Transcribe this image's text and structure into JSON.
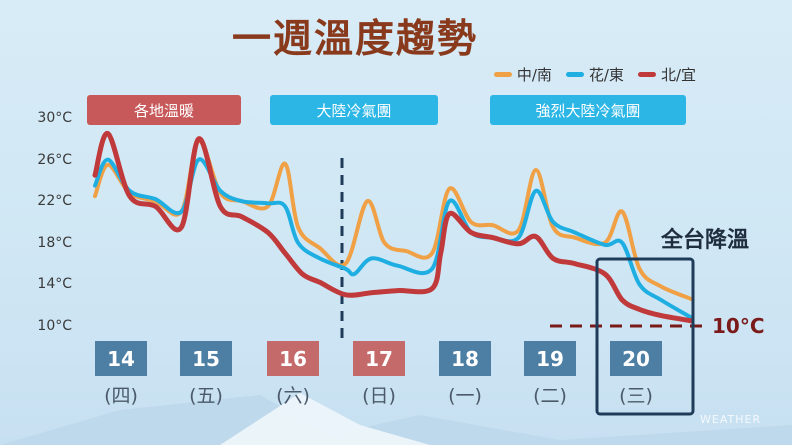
{
  "title": "一週溫度趨勢",
  "legend": [
    {
      "label": "中/南",
      "color": "#f0a045"
    },
    {
      "label": "花/東",
      "color": "#1eaee2"
    },
    {
      "label": "北/宜",
      "color": "#c0393b"
    }
  ],
  "banners": [
    {
      "label": "各地溫暖",
      "color": "#c8595a"
    },
    {
      "label": "大陸冷氣團",
      "color": "#2bb6e6"
    },
    {
      "label": "強烈大陸冷氣團",
      "color": "#2bb6e6"
    }
  ],
  "days": [
    {
      "date": "14",
      "weekday": "(四)",
      "color": "#4d7fa4"
    },
    {
      "date": "15",
      "weekday": "(五)",
      "color": "#4d7fa4"
    },
    {
      "date": "16",
      "weekday": "(六)",
      "color": "#c46a6a"
    },
    {
      "date": "17",
      "weekday": "(日)",
      "color": "#c46a6a"
    },
    {
      "date": "18",
      "weekday": "(一)",
      "color": "#4d7fa4"
    },
    {
      "date": "19",
      "weekday": "(二)",
      "color": "#4d7fa4"
    },
    {
      "date": "20",
      "weekday": "(三)",
      "color": "#4d7fa4"
    }
  ],
  "callout": "全台降溫",
  "threshold_label": "10°C",
  "watermark": "WEATHER",
  "chart_data": {
    "type": "line",
    "title": "一週溫度趨勢",
    "y_tick_labels": [
      "30°C",
      "26°C",
      "22°C",
      "18°C",
      "14°C",
      "10°C"
    ],
    "y_ticks": [
      30,
      26,
      22,
      18,
      14,
      10
    ],
    "ylim": [
      9,
      31
    ],
    "x_range": [
      14,
      21
    ],
    "threshold": 10,
    "grid": false,
    "legend_position": "top-right",
    "series": [
      {
        "name": "中/南",
        "color": "#f0a045",
        "x": [
          14.0,
          14.15,
          14.4,
          14.7,
          15.0,
          15.2,
          15.45,
          15.7,
          16.0,
          16.2,
          16.35,
          16.6,
          16.9,
          17.15,
          17.35,
          17.6,
          17.9,
          18.1,
          18.35,
          18.6,
          18.9,
          19.1,
          19.3,
          19.55,
          19.9,
          20.1,
          20.3,
          20.55,
          20.9
        ],
        "y": [
          22.5,
          25.5,
          22.8,
          22.0,
          21.0,
          27.8,
          22.8,
          22.0,
          21.5,
          25.6,
          19.5,
          17.5,
          16.0,
          22.0,
          18.0,
          17.2,
          17.0,
          23.2,
          20.0,
          19.7,
          19.2,
          25.0,
          19.5,
          18.5,
          18.0,
          21.0,
          15.5,
          13.8,
          12.6
        ]
      },
      {
        "name": "花/東",
        "color": "#1eaee2",
        "x": [
          14.0,
          14.15,
          14.4,
          14.7,
          15.0,
          15.2,
          15.45,
          15.7,
          16.0,
          16.2,
          16.35,
          16.6,
          16.9,
          17.0,
          17.2,
          17.5,
          17.9,
          18.1,
          18.35,
          18.6,
          18.9,
          19.1,
          19.3,
          19.55,
          19.9,
          20.1,
          20.3,
          20.55,
          20.9
        ],
        "y": [
          23.5,
          26.0,
          23.0,
          22.2,
          21.0,
          26.0,
          23.0,
          22.0,
          21.8,
          21.5,
          18.0,
          16.5,
          15.5,
          15.0,
          16.5,
          15.8,
          15.5,
          22.0,
          19.0,
          18.5,
          18.5,
          23.0,
          20.0,
          19.0,
          17.8,
          18.0,
          14.0,
          12.5,
          10.8
        ]
      },
      {
        "name": "北/宜",
        "color": "#c0393b",
        "x": [
          14.0,
          14.15,
          14.4,
          14.7,
          15.0,
          15.2,
          15.45,
          15.7,
          16.0,
          16.2,
          16.4,
          16.6,
          16.9,
          17.2,
          17.5,
          17.9,
          18.0,
          18.1,
          18.35,
          18.6,
          18.9,
          19.1,
          19.3,
          19.55,
          19.9,
          20.1,
          20.3,
          20.55,
          20.9
        ],
        "y": [
          24.5,
          28.5,
          22.5,
          21.5,
          19.5,
          28.0,
          21.5,
          20.5,
          19.0,
          17.0,
          15.0,
          14.2,
          13.0,
          13.2,
          13.4,
          13.6,
          17.0,
          20.8,
          19.0,
          18.5,
          17.9,
          18.6,
          16.5,
          16.0,
          15.0,
          12.5,
          11.6,
          11.0,
          10.5
        ]
      }
    ]
  }
}
